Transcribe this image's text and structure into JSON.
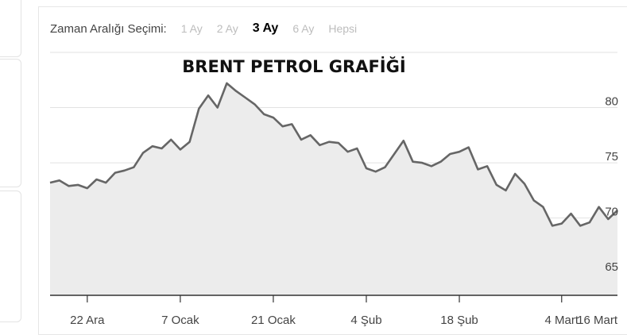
{
  "range_selector": {
    "label": "Zaman Aralığı Seçimi:",
    "options": [
      {
        "label": "1 Ay",
        "active": false
      },
      {
        "label": "2 Ay",
        "active": false
      },
      {
        "label": "3 Ay",
        "active": true
      },
      {
        "label": "6 Ay",
        "active": false
      },
      {
        "label": "Hepsi",
        "active": false
      }
    ]
  },
  "colors": {
    "line": "#666666",
    "fill": "#ececec",
    "grid": "#e2e2e2",
    "axis": "#333333"
  },
  "chart_data": {
    "type": "area",
    "title": "BRENT PETROL GRAFİĞİ",
    "xlabel": "",
    "ylabel": "",
    "ylim": [
      63,
      85
    ],
    "yticks": [
      65,
      70,
      75,
      80
    ],
    "y_axis_position": "right",
    "grid": true,
    "x_tick_labels": [
      "22 Ara",
      "7 Ocak",
      "21 Ocak",
      "4 Şub",
      "18 Şub",
      "4 Mart",
      "16 Mart"
    ],
    "x_tick_indices": [
      4,
      14,
      24,
      34,
      44,
      55,
      64
    ],
    "series": [
      {
        "values": [
          73.2,
          73.4,
          72.9,
          73.0,
          72.7,
          73.5,
          73.2,
          74.1,
          74.3,
          74.6,
          75.9,
          76.5,
          76.3,
          77.1,
          76.2,
          76.9,
          79.9,
          81.1,
          80.0,
          82.2,
          81.5,
          80.9,
          80.3,
          79.4,
          79.1,
          78.3,
          78.5,
          77.1,
          77.5,
          76.6,
          76.9,
          76.8,
          76.0,
          76.3,
          74.5,
          74.2,
          74.6,
          75.8,
          77.0,
          75.1,
          75.0,
          74.7,
          75.1,
          75.8,
          76.0,
          76.4,
          74.4,
          74.7,
          73.0,
          72.5,
          74.0,
          73.1,
          71.6,
          71.0,
          69.3,
          69.5,
          70.4,
          69.3,
          69.6,
          71.0,
          69.9,
          70.7
        ]
      }
    ]
  }
}
